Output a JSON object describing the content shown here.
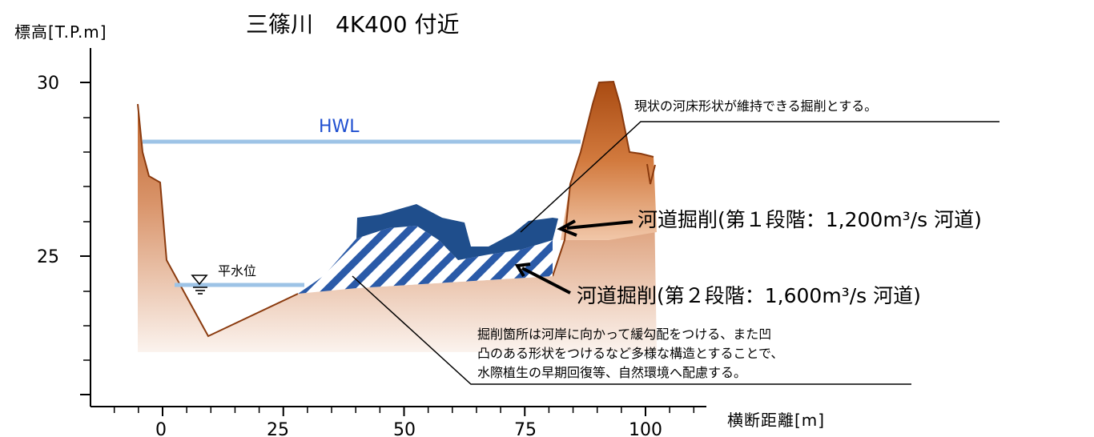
{
  "title": "三篠川　4K400 付近",
  "y_axis": {
    "label": "標高[T.P.m]",
    "ticks": [
      {
        "v": 25,
        "label": "25"
      },
      {
        "v": 30,
        "label": "30"
      }
    ]
  },
  "x_axis": {
    "label": "横断距離[m]",
    "ticks": [
      {
        "v": 0,
        "label": "0"
      },
      {
        "v": 25,
        "label": "25"
      },
      {
        "v": 50,
        "label": "50"
      },
      {
        "v": 75,
        "label": "75"
      },
      {
        "v": 100,
        "label": "100"
      }
    ]
  },
  "hwl": {
    "label": "HWL",
    "elevation": 28.3,
    "color": "#9dc3e6"
  },
  "normal_water": {
    "label": "平水位",
    "elevation": 24.1,
    "color": "#9dc3e6"
  },
  "stage1": {
    "label": "河道掘削(第１段階：1,200m³/s 河道)",
    "color": "#1f4e8c"
  },
  "stage2": {
    "label": "河道掘削(第２段階：1,600m³/s 河道)",
    "color": "#2a5aa8"
  },
  "callout_top": {
    "text": "現状の河床形状が維持できる掘削とする。"
  },
  "callout_bottom": {
    "lines": [
      "掘削箇所は河岸に向かって緩勾配をつける、また凹",
      "凸のある形状をつけるなど多様な構造とすることで、",
      "水際植生の早期回復等、自然環境へ配慮する。"
    ]
  },
  "colors": {
    "ground_dark": "#b85a1e",
    "ground_light": "#f7ede6",
    "axis": "#000000"
  }
}
